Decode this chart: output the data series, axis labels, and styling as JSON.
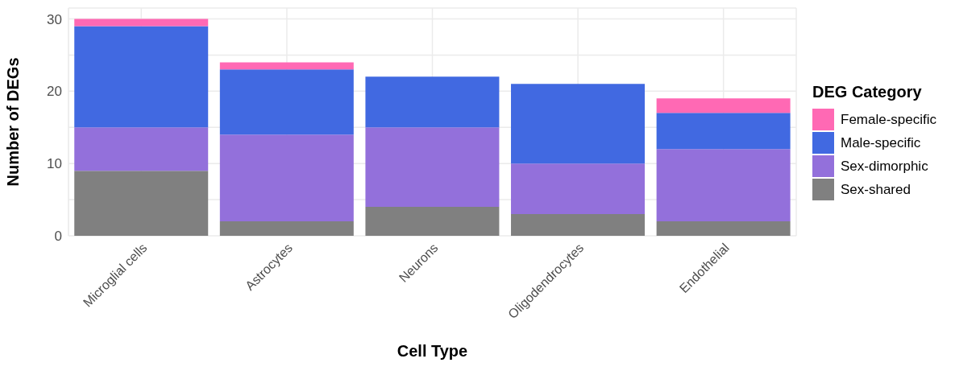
{
  "chart_data": {
    "type": "bar",
    "stacked": true,
    "xlabel": "Cell Type",
    "ylabel": "Number of DEGs",
    "legend_title": "DEG Category",
    "legend": "right",
    "categories": [
      "Microglial cells",
      "Astrocytes",
      "Neurons",
      "Oligodendrocytes",
      "Endothelial"
    ],
    "series": [
      {
        "name": "Sex-shared",
        "color": "#808080",
        "values": [
          9,
          2,
          4,
          3,
          2
        ]
      },
      {
        "name": "Sex-dimorphic",
        "color": "#9370db",
        "values": [
          6,
          12,
          11,
          7,
          10
        ]
      },
      {
        "name": "Male-specific",
        "color": "#4169e1",
        "values": [
          14,
          9,
          7,
          11,
          5
        ]
      },
      {
        "name": "Female-specific",
        "color": "#ff69b4",
        "values": [
          1,
          1,
          0,
          0,
          2
        ]
      }
    ],
    "ylim": [
      0,
      31.5
    ],
    "yticks": [
      0,
      {
        "value": 5,
        "label": null
      },
      10,
      {
        "value": 15,
        "label": null
      },
      20,
      {
        "value": 25,
        "label": null
      },
      30
    ],
    "grid": true
  }
}
